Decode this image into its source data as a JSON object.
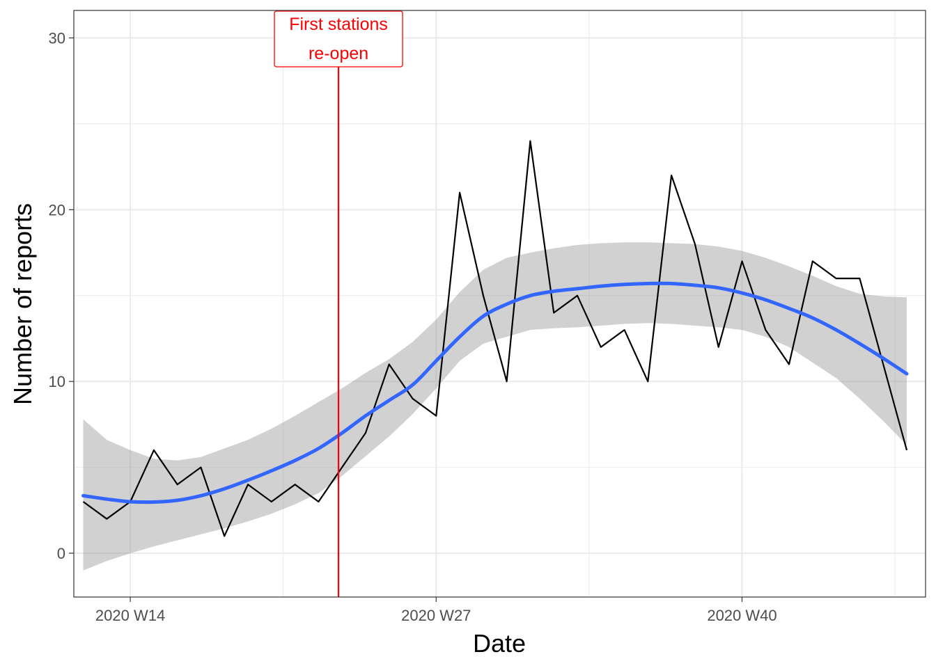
{
  "chart_data": {
    "type": "line",
    "title": "",
    "xlabel": "Date",
    "ylabel": "Number of reports",
    "x_ticks": [
      14,
      27,
      40
    ],
    "x_tick_labels": [
      "2020 W14",
      "2020 W27",
      "2020 W40"
    ],
    "y_ticks": [
      0,
      10,
      20,
      30
    ],
    "y_tick_labels": [
      "0",
      "10",
      "20",
      "30"
    ],
    "xlim": [
      11.6,
      47.8
    ],
    "ylim": [
      -2.55,
      31.6
    ],
    "grid": true,
    "legend": "none",
    "series": [
      {
        "type": "line",
        "color": "#000000",
        "x": [
          12,
          13,
          14,
          15,
          16,
          17,
          18,
          19,
          20,
          21,
          22,
          23,
          24,
          25,
          26,
          27,
          28,
          29,
          30,
          31,
          32,
          33,
          34,
          35,
          36,
          37,
          38,
          39,
          40,
          41,
          42,
          43,
          44,
          45,
          46,
          47
        ],
        "y": [
          3,
          2,
          3,
          6,
          4,
          5,
          1,
          4,
          3,
          4,
          3,
          5,
          7,
          11,
          9,
          8,
          21,
          15,
          10,
          24,
          14,
          15,
          12,
          13,
          10,
          22,
          18,
          12,
          17,
          13,
          11,
          17,
          16,
          16,
          11,
          6
        ]
      },
      {
        "type": "smooth",
        "color": "#3366FF",
        "x": [
          12,
          13,
          14,
          15,
          16,
          17,
          18,
          19,
          20,
          21,
          22,
          23,
          24,
          25,
          26,
          27,
          28,
          29,
          30,
          31,
          32,
          33,
          34,
          35,
          36,
          37,
          38,
          39,
          40,
          41,
          42,
          43,
          44,
          45,
          46,
          47
        ],
        "y": [
          3.35,
          3.15,
          3.0,
          2.98,
          3.08,
          3.35,
          3.75,
          4.25,
          4.8,
          5.4,
          6.1,
          7.0,
          8.0,
          8.9,
          9.8,
          11.2,
          12.6,
          13.8,
          14.5,
          15.0,
          15.25,
          15.4,
          15.55,
          15.65,
          15.7,
          15.7,
          15.6,
          15.45,
          15.15,
          14.75,
          14.25,
          13.7,
          13.0,
          12.2,
          11.35,
          10.45
        ],
        "ci_lower": [
          -1.0,
          -0.45,
          0.0,
          0.4,
          0.75,
          1.1,
          1.45,
          1.85,
          2.3,
          2.85,
          3.5,
          4.5,
          5.65,
          6.8,
          8.1,
          9.6,
          11.2,
          12.2,
          12.6,
          13.0,
          13.1,
          13.15,
          13.25,
          13.35,
          13.4,
          13.35,
          13.25,
          13.15,
          13.0,
          12.6,
          12.0,
          11.1,
          10.2,
          9.0,
          7.7,
          6.3
        ],
        "ci_upper": [
          7.8,
          6.6,
          6.0,
          5.5,
          5.4,
          5.6,
          6.1,
          6.6,
          7.25,
          8.0,
          8.8,
          9.6,
          10.5,
          11.3,
          12.3,
          13.6,
          15.2,
          16.5,
          17.2,
          17.5,
          17.75,
          17.95,
          18.05,
          18.1,
          18.1,
          18.05,
          18.0,
          17.85,
          17.6,
          17.2,
          16.7,
          16.15,
          15.55,
          15.1,
          14.95,
          14.9
        ]
      }
    ],
    "annotations": [
      {
        "type": "vline",
        "x": 22.85,
        "color": "#FF0000",
        "label": "First stations\nre-open"
      }
    ]
  }
}
